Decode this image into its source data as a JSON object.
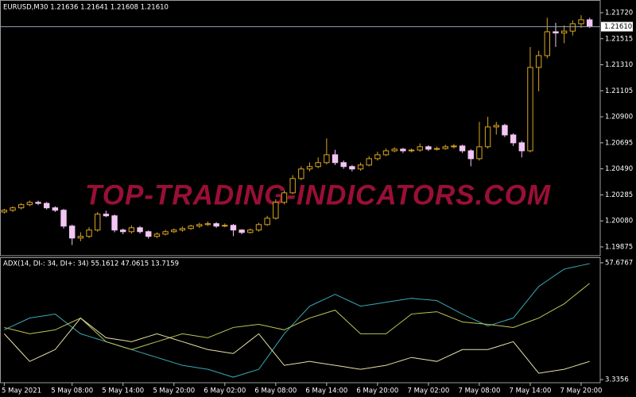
{
  "chart_data": [
    {
      "type": "candlestick",
      "header": "EURUSD,M30  1.21636 1.21641 1.21608 1.21610",
      "watermark": "TOP-TRADING-INDICATORS.COM",
      "up_color": "#d9a520",
      "down_color": "#f4c6f4",
      "ylim": [
        1.19806,
        1.2182
      ],
      "yticks": [
        {
          "value": 1.2172,
          "label": "1.21720"
        },
        1.21515,
        {
          "value": 1.2131,
          "label": "1.21310"
        },
        1.21105,
        {
          "value": 1.209,
          "label": "1.20900"
        },
        1.20695,
        {
          "value": 1.2049,
          "label": "1.20490"
        },
        1.20285,
        {
          "value": 1.2008,
          "label": "1.20080"
        },
        1.19875
      ],
      "last_price": {
        "value": 1.2161,
        "label": "1.21610"
      },
      "candles": [
        [
          1.2015,
          1.20175,
          1.20138,
          1.20164
        ],
        [
          1.20164,
          1.20195,
          1.2015,
          1.20183
        ],
        [
          1.20183,
          1.2022,
          1.2017,
          1.20208
        ],
        [
          1.20208,
          1.2024,
          1.20195,
          1.20226
        ],
        [
          1.20226,
          1.2024,
          1.20205,
          1.20218
        ],
        [
          1.20218,
          1.20228,
          1.2017,
          1.20183
        ],
        [
          1.20183,
          1.20195,
          1.2015,
          1.20164
        ],
        [
          1.20164,
          1.20175,
          1.2002,
          1.20039
        ],
        [
          1.20039,
          1.2005,
          1.1989,
          1.19945
        ],
        [
          1.19945,
          1.1999,
          1.1992,
          1.19958
        ],
        [
          1.19958,
          1.2003,
          1.19945,
          1.20008
        ],
        [
          1.20008,
          1.2015,
          1.19995,
          1.20133
        ],
        [
          1.20133,
          1.2016,
          1.2011,
          1.2012
        ],
        [
          1.2012,
          1.2013,
          1.1999,
          1.20008
        ],
        [
          1.20008,
          1.2002,
          1.19975,
          1.19995
        ],
        [
          1.19995,
          1.20045,
          1.1998,
          1.20026
        ],
        [
          1.20026,
          1.2004,
          1.1998,
          1.19995
        ],
        [
          1.19995,
          1.20005,
          1.1994,
          1.19958
        ],
        [
          1.19958,
          1.1999,
          1.19945,
          1.19976
        ],
        [
          1.19976,
          1.2001,
          1.19965,
          1.19995
        ],
        [
          1.19995,
          1.2002,
          1.19985,
          1.20008
        ],
        [
          1.20008,
          1.20035,
          1.19995,
          1.2002
        ],
        [
          1.2002,
          1.2005,
          1.2001,
          1.20039
        ],
        [
          1.20039,
          1.20065,
          1.20025,
          1.20051
        ],
        [
          1.20051,
          1.20075,
          1.2004,
          1.20058
        ],
        [
          1.20058,
          1.2007,
          1.20025,
          1.20039
        ],
        [
          1.20039,
          1.2006,
          1.2003,
          1.20045
        ],
        [
          1.20045,
          1.20055,
          1.1996,
          1.20008
        ],
        [
          1.20008,
          1.20015,
          1.19975,
          1.19989
        ],
        [
          1.19989,
          1.2002,
          1.1998,
          1.20008
        ],
        [
          1.20008,
          1.20065,
          1.19995,
          1.20051
        ],
        [
          1.20051,
          1.2012,
          1.2004,
          1.20101
        ],
        [
          1.20101,
          1.2025,
          1.2009,
          1.20226
        ],
        [
          1.20226,
          1.2032,
          1.2021,
          1.20301
        ],
        [
          1.20301,
          1.2044,
          1.2029,
          1.20414
        ],
        [
          1.20414,
          1.2051,
          1.204,
          1.20489
        ],
        [
          1.20489,
          1.2054,
          1.2047,
          1.20508
        ],
        [
          1.20508,
          1.2058,
          1.20495,
          1.20539
        ],
        [
          1.20539,
          1.2073,
          1.20525,
          1.20601
        ],
        [
          1.20601,
          1.2064,
          1.2052,
          1.20539
        ],
        [
          1.20539,
          1.20555,
          1.2049,
          1.20508
        ],
        [
          1.20508,
          1.2052,
          1.2047,
          1.20489
        ],
        [
          1.20489,
          1.2054,
          1.20475,
          1.2052
        ],
        [
          1.2052,
          1.2059,
          1.2051,
          1.2057
        ],
        [
          1.2057,
          1.20625,
          1.20555,
          1.20601
        ],
        [
          1.20601,
          1.2065,
          1.2059,
          1.20632
        ],
        [
          1.20632,
          1.2066,
          1.2062,
          1.20645
        ],
        [
          1.20645,
          1.20655,
          1.20615,
          1.20632
        ],
        [
          1.20632,
          1.2065,
          1.2062,
          1.20638
        ],
        [
          1.20638,
          1.2069,
          1.20625,
          1.20664
        ],
        [
          1.20664,
          1.20675,
          1.2063,
          1.20645
        ],
        [
          1.20645,
          1.20665,
          1.20635,
          1.2065
        ],
        [
          1.2065,
          1.2068,
          1.2064,
          1.20664
        ],
        [
          1.20664,
          1.20685,
          1.2065,
          1.2067
        ],
        [
          1.2067,
          1.2068,
          1.20615,
          1.20632
        ],
        [
          1.20632,
          1.20645,
          1.2051,
          1.2057
        ],
        [
          1.2057,
          1.2086,
          1.20555,
          1.20664
        ],
        [
          1.20664,
          1.209,
          1.2065,
          1.2082
        ],
        [
          1.2082,
          1.2086,
          1.2076,
          1.20832
        ],
        [
          1.20832,
          1.20845,
          1.2074,
          1.20757
        ],
        [
          1.20757,
          1.2077,
          1.2067,
          1.20695
        ],
        [
          1.20695,
          1.2071,
          1.2058,
          1.20632
        ],
        [
          1.20632,
          1.2145,
          1.2062,
          1.21289
        ],
        [
          1.21289,
          1.2142,
          1.211,
          1.21382
        ],
        [
          1.21382,
          1.2168,
          1.2136,
          1.2157
        ],
        [
          1.2157,
          1.2164,
          1.2145,
          1.2156
        ],
        [
          1.2156,
          1.2162,
          1.2148,
          1.21575
        ],
        [
          1.21575,
          1.2166,
          1.2154,
          1.21633
        ],
        [
          1.21633,
          1.217,
          1.216,
          1.21664
        ],
        [
          1.21664,
          1.2168,
          1.216,
          1.2161
        ]
      ]
    },
    {
      "type": "line",
      "header": "ADX(14, DI-: 34, DI+: 34) 55.1612 47.0615 13.7159",
      "ylim": [
        1.87,
        59.88
      ],
      "yticks": [
        3.3356,
        57.6767
      ],
      "categories": [
        "5 May 2021",
        null,
        null,
        null,
        null,
        null,
        null,
        null,
        "5 May 08:00",
        null,
        null,
        null,
        null,
        null,
        "5 May 14:00",
        null,
        null,
        null,
        null,
        null,
        "5 May 20:00",
        null,
        null,
        null,
        null,
        null,
        "6 May 02:00",
        null,
        null,
        null,
        null,
        null,
        "6 May 08:00",
        null,
        null,
        null,
        null,
        null,
        "6 May 14:00",
        null,
        null,
        null,
        null,
        null,
        "6 May 20:00",
        null,
        null,
        null,
        null,
        null,
        "7 May 02:00",
        null,
        null,
        null,
        null,
        null,
        "7 May 08:00",
        null,
        null,
        null,
        null,
        null,
        "7 May 14:00",
        null,
        null,
        null,
        null,
        null,
        "7 May 20:00",
        null
      ],
      "series": [
        {
          "color": "#3ba7b3",
          "values": [
            26.47,
            28.3,
            30.14,
            31.97,
            32.58,
            33.2,
            33.81,
            30.75,
            27.69,
            24.63,
            23.41,
            22.18,
            20.96,
            19.74,
            18.51,
            17.29,
            16.07,
            14.84,
            13.62,
            12.4,
            11.17,
            9.95,
            9.34,
            8.72,
            8.11,
            6.89,
            5.66,
            4.44,
            5.66,
            6.89,
            8.11,
            13.62,
            19.12,
            24.63,
            28.91,
            33.2,
            37.48,
            39.32,
            41.15,
            42.99,
            41.15,
            39.32,
            37.48,
            38.09,
            38.7,
            39.31,
            39.92,
            40.54,
            41.15,
            40.78,
            40.42,
            40.05,
            37.97,
            35.89,
            33.81,
            31.97,
            30.14,
            28.3,
            29.52,
            30.75,
            31.97,
            36.87,
            41.76,
            46.66,
            49.35,
            52.04,
            54.73,
            55.59,
            56.44,
            57.3
          ]
        },
        {
          "color": "#b9c455",
          "values": [
            27.57,
            26.59,
            25.61,
            24.63,
            25.24,
            25.86,
            26.47,
            28.3,
            30.14,
            31.97,
            28.3,
            24.63,
            20.96,
            19.74,
            18.51,
            17.29,
            18.51,
            19.74,
            20.96,
            22.18,
            23.41,
            24.63,
            24.02,
            23.4,
            22.79,
            24.38,
            25.98,
            27.57,
            28.06,
            28.55,
            29.04,
            28.18,
            27.33,
            26.47,
            28.3,
            30.14,
            31.97,
            33.19,
            34.42,
            35.64,
            31.97,
            28.3,
            24.63,
            24.63,
            24.63,
            24.63,
            27.69,
            30.75,
            33.81,
            34.18,
            34.54,
            34.91,
            33.32,
            31.73,
            30.14,
            29.77,
            29.41,
            29.04,
            28.55,
            28.06,
            27.57,
            29.04,
            30.5,
            31.97,
            34.17,
            36.38,
            38.58,
            41.76,
            44.94,
            48.12
          ]
        },
        {
          "color": "#e6dfa6",
          "values": [
            24.63,
            20.35,
            16.06,
            11.78,
            13.62,
            15.45,
            17.29,
            22.18,
            27.08,
            31.97,
            28.91,
            25.85,
            22.79,
            22.18,
            21.57,
            20.96,
            22.18,
            23.41,
            24.63,
            23.41,
            22.18,
            20.96,
            19.74,
            18.51,
            17.29,
            16.68,
            16.06,
            15.45,
            18.51,
            21.57,
            24.63,
            19.74,
            14.84,
            9.95,
            10.56,
            11.17,
            11.78,
            11.17,
            10.56,
            9.95,
            9.34,
            8.72,
            8.11,
            8.72,
            9.34,
            9.95,
            11.17,
            12.4,
            13.62,
            13.01,
            12.39,
            11.78,
            13.62,
            15.45,
            17.29,
            17.29,
            17.29,
            17.29,
            18.51,
            19.74,
            20.96,
            16.07,
            11.17,
            6.28,
            6.89,
            7.5,
            8.11,
            9.33,
            10.56,
            11.78
          ]
        }
      ]
    }
  ]
}
